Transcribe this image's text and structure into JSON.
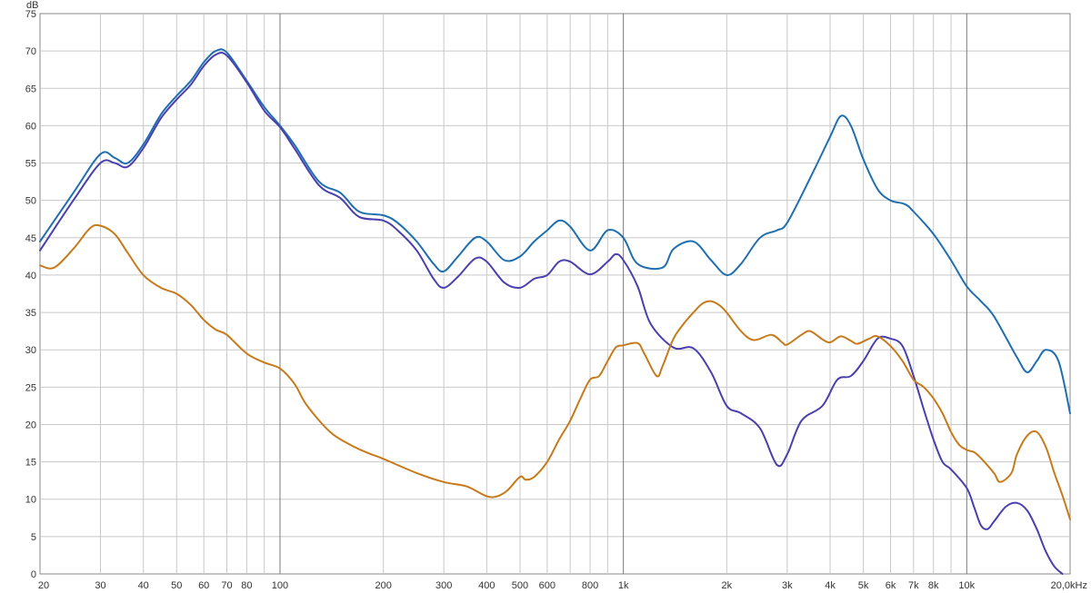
{
  "chart_data": {
    "type": "line",
    "y_unit_label": "dB",
    "x_scale": "log",
    "xlim": [
      20,
      20000
    ],
    "ylim": [
      0,
      75
    ],
    "y_ticks": [
      0,
      5,
      10,
      15,
      20,
      25,
      30,
      35,
      40,
      45,
      50,
      55,
      60,
      65,
      70,
      75
    ],
    "x_tick_labels": [
      {
        "f": 20,
        "label": "20"
      },
      {
        "f": 30,
        "label": "30"
      },
      {
        "f": 40,
        "label": "40"
      },
      {
        "f": 50,
        "label": "50"
      },
      {
        "f": 60,
        "label": "60"
      },
      {
        "f": 70,
        "label": "70"
      },
      {
        "f": 80,
        "label": "80"
      },
      {
        "f": 100,
        "label": "100"
      },
      {
        "f": 200,
        "label": "200"
      },
      {
        "f": 300,
        "label": "300"
      },
      {
        "f": 400,
        "label": "400"
      },
      {
        "f": 500,
        "label": "500"
      },
      {
        "f": 600,
        "label": "600"
      },
      {
        "f": 800,
        "label": "800"
      },
      {
        "f": 1000,
        "label": "1k"
      },
      {
        "f": 2000,
        "label": "2k"
      },
      {
        "f": 3000,
        "label": "3k"
      },
      {
        "f": 4000,
        "label": "4k"
      },
      {
        "f": 5000,
        "label": "5k"
      },
      {
        "f": 6000,
        "label": "6k"
      },
      {
        "f": 7000,
        "label": "7k"
      },
      {
        "f": 8000,
        "label": "8k"
      },
      {
        "f": 10000,
        "label": "10k"
      },
      {
        "f": 20000,
        "label": "20,0kHz"
      }
    ],
    "grid": true,
    "series": [
      {
        "color": "#1f6fb0",
        "points": [
          [
            20,
            44.5
          ],
          [
            25,
            51
          ],
          [
            30,
            56.2
          ],
          [
            33,
            55.7
          ],
          [
            36,
            55
          ],
          [
            40,
            57.5
          ],
          [
            45,
            61.5
          ],
          [
            50,
            64
          ],
          [
            55,
            66
          ],
          [
            60,
            68.5
          ],
          [
            65,
            70
          ],
          [
            70,
            69.8
          ],
          [
            80,
            66
          ],
          [
            90,
            62.5
          ],
          [
            100,
            60
          ],
          [
            110,
            57.5
          ],
          [
            130,
            52.5
          ],
          [
            150,
            51
          ],
          [
            170,
            48.5
          ],
          [
            200,
            48
          ],
          [
            220,
            47
          ],
          [
            250,
            44.5
          ],
          [
            280,
            41.5
          ],
          [
            300,
            40.5
          ],
          [
            330,
            42.5
          ],
          [
            370,
            45
          ],
          [
            400,
            44.5
          ],
          [
            450,
            42
          ],
          [
            500,
            42.5
          ],
          [
            550,
            44.5
          ],
          [
            600,
            46
          ],
          [
            650,
            47.3
          ],
          [
            700,
            46.5
          ],
          [
            800,
            43.3
          ],
          [
            900,
            46
          ],
          [
            1000,
            45
          ],
          [
            1100,
            41.5
          ],
          [
            1300,
            41
          ],
          [
            1400,
            43.5
          ],
          [
            1600,
            44.5
          ],
          [
            1800,
            42
          ],
          [
            2000,
            40
          ],
          [
            2200,
            41.5
          ],
          [
            2500,
            45
          ],
          [
            2800,
            46
          ],
          [
            3000,
            47
          ],
          [
            3500,
            53
          ],
          [
            4000,
            58.5
          ],
          [
            4300,
            61.3
          ],
          [
            4600,
            60
          ],
          [
            5000,
            55.5
          ],
          [
            5500,
            51.5
          ],
          [
            6000,
            50
          ],
          [
            6600,
            49.5
          ],
          [
            7000,
            48.5
          ],
          [
            8000,
            45.5
          ],
          [
            9000,
            42
          ],
          [
            10000,
            38.5
          ],
          [
            11000,
            36.5
          ],
          [
            12000,
            34.5
          ],
          [
            14000,
            29
          ],
          [
            15000,
            27
          ],
          [
            16000,
            28.5
          ],
          [
            17000,
            30
          ],
          [
            18500,
            28.5
          ],
          [
            20000,
            21.5
          ]
        ]
      },
      {
        "color": "#4a3fae",
        "points": [
          [
            20,
            43.3
          ],
          [
            25,
            50
          ],
          [
            30,
            55
          ],
          [
            33,
            55
          ],
          [
            36,
            54.5
          ],
          [
            40,
            57
          ],
          [
            45,
            61
          ],
          [
            50,
            63.5
          ],
          [
            55,
            65.5
          ],
          [
            60,
            68
          ],
          [
            65,
            69.5
          ],
          [
            70,
            69.4
          ],
          [
            80,
            65.8
          ],
          [
            90,
            62
          ],
          [
            100,
            59.8
          ],
          [
            110,
            57
          ],
          [
            130,
            52
          ],
          [
            150,
            50.3
          ],
          [
            170,
            47.8
          ],
          [
            200,
            47.3
          ],
          [
            220,
            46
          ],
          [
            250,
            43.3
          ],
          [
            280,
            39.5
          ],
          [
            300,
            38.3
          ],
          [
            330,
            39.8
          ],
          [
            370,
            42.2
          ],
          [
            400,
            41.8
          ],
          [
            450,
            39
          ],
          [
            500,
            38.3
          ],
          [
            550,
            39.5
          ],
          [
            600,
            40
          ],
          [
            650,
            41.8
          ],
          [
            700,
            41.8
          ],
          [
            800,
            40.1
          ],
          [
            900,
            41.8
          ],
          [
            950,
            42.8
          ],
          [
            1000,
            42
          ],
          [
            1100,
            38.5
          ],
          [
            1200,
            33.5
          ],
          [
            1400,
            30.3
          ],
          [
            1600,
            30.2
          ],
          [
            1800,
            27
          ],
          [
            2000,
            22.5
          ],
          [
            2200,
            21.5
          ],
          [
            2500,
            19.5
          ],
          [
            2800,
            14.6
          ],
          [
            3000,
            16
          ],
          [
            3300,
            20.5
          ],
          [
            3800,
            22.5
          ],
          [
            4200,
            26
          ],
          [
            4600,
            26.5
          ],
          [
            5000,
            28.5
          ],
          [
            5500,
            31.5
          ],
          [
            6000,
            31.5
          ],
          [
            6500,
            30.5
          ],
          [
            7000,
            26.5
          ],
          [
            7500,
            22
          ],
          [
            8000,
            18
          ],
          [
            8500,
            15
          ],
          [
            9000,
            14
          ],
          [
            10000,
            11.5
          ],
          [
            10500,
            9
          ],
          [
            11000,
            6.5
          ],
          [
            11500,
            6
          ],
          [
            12000,
            7
          ],
          [
            13000,
            9
          ],
          [
            14000,
            9.5
          ],
          [
            15000,
            8.5
          ],
          [
            16000,
            6
          ],
          [
            17000,
            3
          ],
          [
            18000,
            1
          ],
          [
            19000,
            0
          ]
        ]
      },
      {
        "color": "#c77a1b",
        "points": [
          [
            20,
            41.3
          ],
          [
            22,
            41
          ],
          [
            25,
            43.5
          ],
          [
            28,
            46.3
          ],
          [
            30,
            46.6
          ],
          [
            33,
            45.5
          ],
          [
            36,
            43
          ],
          [
            40,
            40
          ],
          [
            45,
            38.3
          ],
          [
            50,
            37.5
          ],
          [
            55,
            36
          ],
          [
            60,
            34
          ],
          [
            65,
            32.7
          ],
          [
            70,
            32
          ],
          [
            80,
            29.5
          ],
          [
            90,
            28.3
          ],
          [
            100,
            27.5
          ],
          [
            110,
            25.5
          ],
          [
            120,
            22.5
          ],
          [
            140,
            19
          ],
          [
            160,
            17.3
          ],
          [
            180,
            16.2
          ],
          [
            200,
            15.4
          ],
          [
            250,
            13.5
          ],
          [
            300,
            12.3
          ],
          [
            350,
            11.7
          ],
          [
            400,
            10.4
          ],
          [
            430,
            10.4
          ],
          [
            460,
            11.2
          ],
          [
            500,
            13
          ],
          [
            520,
            12.6
          ],
          [
            550,
            13
          ],
          [
            600,
            15
          ],
          [
            650,
            18
          ],
          [
            700,
            20.5
          ],
          [
            750,
            23.5
          ],
          [
            800,
            26
          ],
          [
            850,
            26.5
          ],
          [
            900,
            28.5
          ],
          [
            950,
            30.3
          ],
          [
            1000,
            30.6
          ],
          [
            1100,
            30.9
          ],
          [
            1150,
            29.5
          ],
          [
            1250,
            26.5
          ],
          [
            1300,
            27.8
          ],
          [
            1400,
            31.5
          ],
          [
            1500,
            33.5
          ],
          [
            1600,
            35
          ],
          [
            1700,
            36.2
          ],
          [
            1800,
            36.5
          ],
          [
            1900,
            36
          ],
          [
            2000,
            35
          ],
          [
            2200,
            32.5
          ],
          [
            2400,
            31.3
          ],
          [
            2700,
            32
          ],
          [
            2900,
            31
          ],
          [
            3000,
            30.7
          ],
          [
            3300,
            32
          ],
          [
            3500,
            32.5
          ],
          [
            3800,
            31.4
          ],
          [
            4000,
            31
          ],
          [
            4300,
            31.8
          ],
          [
            4600,
            31.2
          ],
          [
            4800,
            30.8
          ],
          [
            5200,
            31.5
          ],
          [
            5500,
            31.8
          ],
          [
            6000,
            30.5
          ],
          [
            6500,
            28.5
          ],
          [
            7000,
            26
          ],
          [
            7500,
            25
          ],
          [
            8000,
            23.5
          ],
          [
            8500,
            21.5
          ],
          [
            9000,
            19
          ],
          [
            9500,
            17.3
          ],
          [
            10000,
            16.6
          ],
          [
            10500,
            16.3
          ],
          [
            11000,
            15.5
          ],
          [
            12000,
            13.5
          ],
          [
            12500,
            12.3
          ],
          [
            13500,
            13.5
          ],
          [
            14000,
            16
          ],
          [
            15000,
            18.5
          ],
          [
            16000,
            19
          ],
          [
            17000,
            17
          ],
          [
            18000,
            13.5
          ],
          [
            19000,
            10.5
          ],
          [
            20000,
            7.3
          ]
        ]
      }
    ]
  }
}
